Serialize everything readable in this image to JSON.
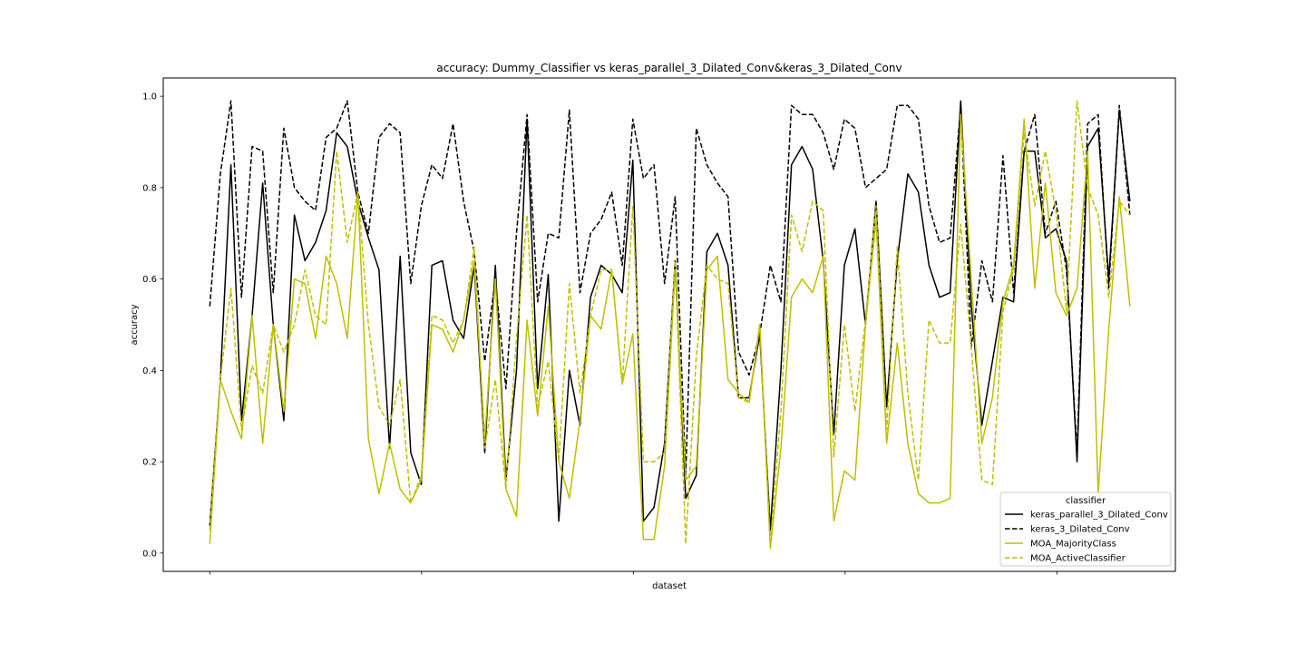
{
  "chart_data": {
    "type": "line",
    "title": "accuracy: Dummy_Classifier vs keras_parallel_3_Dilated_Conv&keras_3_Dilated_Conv",
    "xlabel": "dataset",
    "ylabel": "accuracy",
    "ylim": [
      -0.04,
      1.04
    ],
    "xlim": [
      -4.4,
      91.3
    ],
    "yticks": [
      "0.0",
      "0.2",
      "0.4",
      "0.6",
      "0.8",
      "1.0"
    ],
    "xticks_count": 5,
    "grid": false,
    "legend": {
      "title": "classifier",
      "placement": "lower-right"
    },
    "series": [
      {
        "name": "keras_parallel_3_Dilated_Conv",
        "color": "#000000",
        "dashed": false,
        "values": [
          0.06,
          0.38,
          0.85,
          0.29,
          0.52,
          0.81,
          0.5,
          0.29,
          0.74,
          0.64,
          0.68,
          0.75,
          0.92,
          0.89,
          0.77,
          0.69,
          0.62,
          0.23,
          0.65,
          0.22,
          0.15,
          0.63,
          0.64,
          0.51,
          0.47,
          0.63,
          0.22,
          0.63,
          0.16,
          0.4,
          0.95,
          0.36,
          0.61,
          0.07,
          0.4,
          0.28,
          0.56,
          0.63,
          0.61,
          0.57,
          0.86,
          0.07,
          0.1,
          0.24,
          0.64,
          0.12,
          0.17,
          0.66,
          0.7,
          0.63,
          0.34,
          0.34,
          0.48,
          0.05,
          0.4,
          0.85,
          0.89,
          0.84,
          0.64,
          0.26,
          0.63,
          0.71,
          0.5,
          0.77,
          0.32,
          0.64,
          0.83,
          0.79,
          0.63,
          0.56,
          0.57,
          0.99,
          0.54,
          0.28,
          0.42,
          0.56,
          0.55,
          0.88,
          0.88,
          0.69,
          0.71,
          0.64,
          0.2,
          0.89,
          0.93,
          0.6,
          0.97,
          0.77
        ]
      },
      {
        "name": "keras_3_Dilated_Conv",
        "color": "#000000",
        "dashed": true,
        "values": [
          0.54,
          0.83,
          0.99,
          0.56,
          0.89,
          0.88,
          0.57,
          0.93,
          0.8,
          0.77,
          0.75,
          0.91,
          0.93,
          0.99,
          0.79,
          0.7,
          0.91,
          0.94,
          0.92,
          0.59,
          0.76,
          0.85,
          0.82,
          0.94,
          0.77,
          0.66,
          0.42,
          0.6,
          0.36,
          0.7,
          0.96,
          0.55,
          0.7,
          0.69,
          0.97,
          0.57,
          0.7,
          0.73,
          0.79,
          0.63,
          0.95,
          0.82,
          0.85,
          0.59,
          0.78,
          0.17,
          0.93,
          0.85,
          0.81,
          0.78,
          0.44,
          0.39,
          0.48,
          0.63,
          0.55,
          0.98,
          0.96,
          0.96,
          0.92,
          0.84,
          0.95,
          0.93,
          0.8,
          0.82,
          0.84,
          0.98,
          0.98,
          0.95,
          0.76,
          0.68,
          0.69,
          0.98,
          0.45,
          0.64,
          0.55,
          0.87,
          0.57,
          0.88,
          0.96,
          0.7,
          0.77,
          0.62,
          0.22,
          0.94,
          0.96,
          0.58,
          0.98,
          0.74
        ]
      },
      {
        "name": "MOA_MajorityClass",
        "color": "#bfbf00",
        "dashed": false,
        "values": [
          0.02,
          0.38,
          0.31,
          0.25,
          0.52,
          0.24,
          0.5,
          0.31,
          0.6,
          0.59,
          0.47,
          0.65,
          0.59,
          0.47,
          0.79,
          0.25,
          0.13,
          0.24,
          0.14,
          0.11,
          0.16,
          0.5,
          0.49,
          0.44,
          0.51,
          0.64,
          0.25,
          0.6,
          0.14,
          0.08,
          0.51,
          0.3,
          0.54,
          0.2,
          0.12,
          0.29,
          0.52,
          0.49,
          0.62,
          0.37,
          0.48,
          0.03,
          0.03,
          0.19,
          0.62,
          0.16,
          0.19,
          0.62,
          0.65,
          0.38,
          0.35,
          0.33,
          0.5,
          0.01,
          0.23,
          0.56,
          0.6,
          0.57,
          0.65,
          0.07,
          0.18,
          0.16,
          0.5,
          0.73,
          0.24,
          0.46,
          0.24,
          0.13,
          0.11,
          0.11,
          0.12,
          0.96,
          0.6,
          0.24,
          0.34,
          0.55,
          0.63,
          0.95,
          0.58,
          0.81,
          0.57,
          0.52,
          0.58,
          0.88,
          0.13,
          0.49,
          0.78,
          0.54
        ]
      },
      {
        "name": "MOA_ActiveClassifier",
        "color": "#bfbf00",
        "dashed": true,
        "values": [
          0.05,
          0.38,
          0.58,
          0.27,
          0.41,
          0.35,
          0.5,
          0.44,
          0.5,
          0.62,
          0.52,
          0.5,
          0.88,
          0.68,
          0.79,
          0.5,
          0.32,
          0.28,
          0.38,
          0.11,
          0.17,
          0.52,
          0.51,
          0.46,
          0.51,
          0.67,
          0.23,
          0.38,
          0.14,
          0.47,
          0.74,
          0.32,
          0.42,
          0.2,
          0.59,
          0.35,
          0.52,
          0.62,
          0.62,
          0.37,
          0.76,
          0.2,
          0.2,
          0.22,
          0.64,
          0.02,
          0.43,
          0.63,
          0.6,
          0.59,
          0.34,
          0.33,
          0.5,
          0.02,
          0.31,
          0.74,
          0.66,
          0.77,
          0.75,
          0.21,
          0.5,
          0.31,
          0.51,
          0.76,
          0.27,
          0.67,
          0.35,
          0.16,
          0.51,
          0.46,
          0.46,
          0.72,
          0.45,
          0.16,
          0.15,
          0.53,
          0.62,
          0.92,
          0.76,
          0.88,
          0.75,
          0.53,
          0.99,
          0.8,
          0.74,
          0.56,
          0.77,
          0.74
        ]
      }
    ]
  }
}
